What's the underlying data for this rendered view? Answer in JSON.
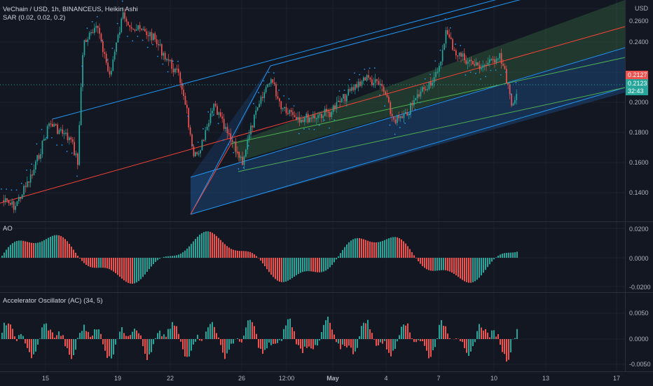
{
  "legend": {
    "symbol_line": "VeChain / USD, 1h, BINANCEUS, Heikin Ashi",
    "sar_line": "SAR (0.02, 0.02, 0.2)",
    "ao_label": "AO",
    "ac_label": "Accelerator Oscillator (AC) (34, 5)"
  },
  "price_axis": {
    "currency": "USD",
    "ticks": [
      "0.2600",
      "0.2400",
      "0.2200",
      "0.2000",
      "0.1800",
      "0.1600",
      "0.1400"
    ],
    "current_price": "0.2127",
    "sar_price": "0.2123",
    "countdown": "32:43"
  },
  "ao_axis": {
    "ticks": [
      "0.0200",
      "0.0000",
      "-0.0200"
    ]
  },
  "ac_axis": {
    "ticks": [
      "0.0050",
      "0.0000",
      "-0.0050"
    ]
  },
  "time_axis": [
    "15",
    "19",
    "22",
    "26",
    "12:00",
    "May",
    "4",
    "7",
    "10",
    "13",
    "17"
  ],
  "colors": {
    "background": "#131722",
    "up": "#26a69a",
    "down": "#ef5350",
    "channel_blue": "#2196f3",
    "channel_fill": "#1e4f8a",
    "regression_green": "#4caf50",
    "regression_red": "#f44336",
    "ao_up": "#26a69a",
    "ao_down": "#ef5350",
    "current_price_tag": "#ef5350",
    "sar_tag": "#26a69a"
  }
}
